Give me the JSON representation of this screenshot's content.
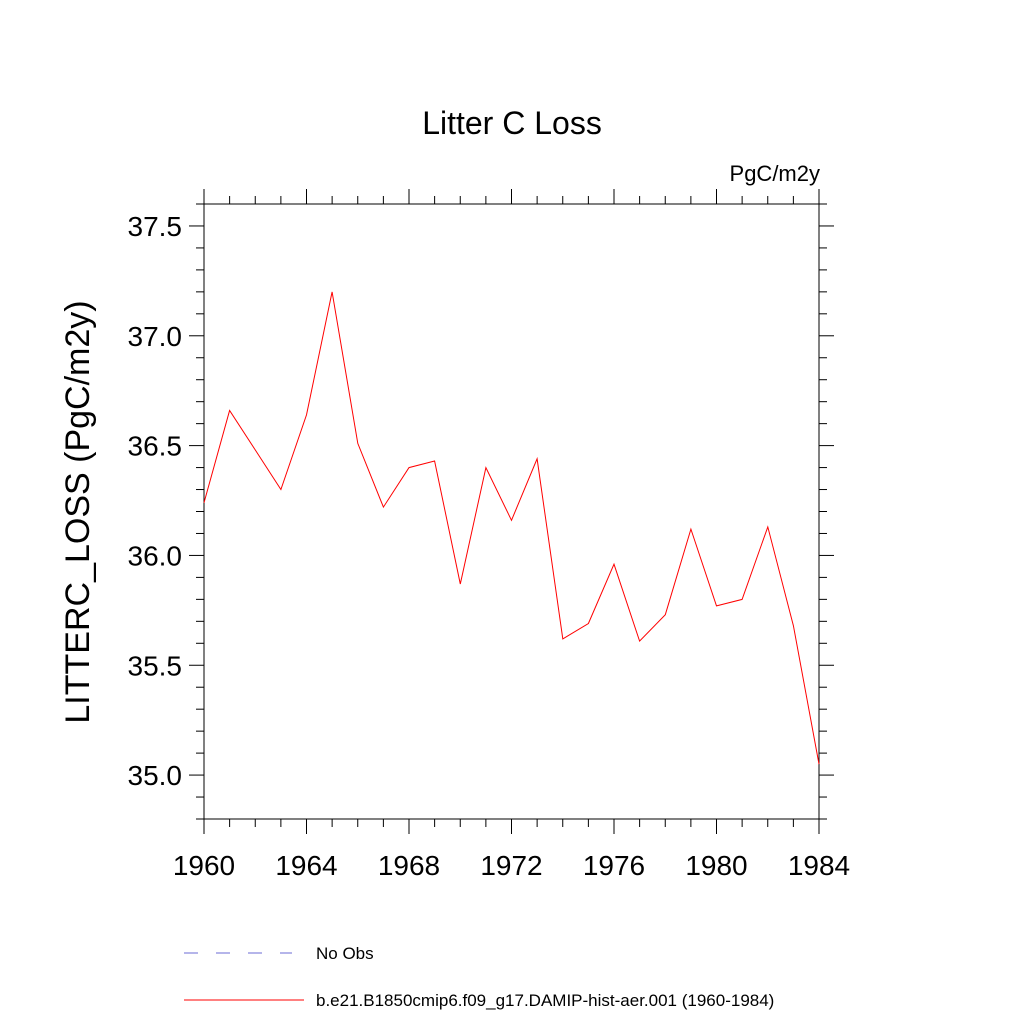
{
  "chart_data": {
    "type": "line",
    "title": "Litter C Loss",
    "units_label": "PgC/m2y",
    "ylabel": "LITTERC_LOSS  (PgC/m2y)",
    "xlabel": "",
    "xlim": [
      1960,
      1984
    ],
    "ylim": [
      34.8,
      37.6
    ],
    "x_ticks": [
      1960,
      1964,
      1968,
      1972,
      1976,
      1980,
      1984
    ],
    "y_ticks": [
      35.0,
      35.5,
      36.0,
      36.5,
      37.0,
      37.5
    ],
    "x_tick_labels": [
      "1960",
      "1964",
      "1968",
      "1972",
      "1976",
      "1980",
      "1984"
    ],
    "y_tick_labels": [
      "35.0",
      "35.5",
      "36.0",
      "36.5",
      "37.0",
      "37.5"
    ],
    "grid": false,
    "legend_position": "bottom",
    "series": [
      {
        "name": "b.e21.B1850cmip6.f09_g17.DAMIP-hist-aer.001 (1960-1984)",
        "color": "#ff0000",
        "style": "solid",
        "x": [
          1960,
          1961,
          1962,
          1963,
          1964,
          1965,
          1966,
          1967,
          1968,
          1969,
          1970,
          1971,
          1972,
          1973,
          1974,
          1975,
          1976,
          1977,
          1978,
          1979,
          1980,
          1981,
          1982,
          1983,
          1984
        ],
        "y": [
          36.24,
          36.66,
          36.48,
          36.3,
          36.64,
          37.2,
          36.51,
          36.22,
          36.4,
          36.43,
          35.87,
          36.4,
          36.16,
          36.44,
          35.62,
          35.69,
          35.96,
          35.61,
          35.73,
          36.12,
          35.77,
          35.8,
          36.13,
          35.68,
          35.05
        ]
      }
    ],
    "legend": [
      {
        "label": "No Obs",
        "color": "#6b6bd6",
        "style": "dashed"
      },
      {
        "label": "b.e21.B1850cmip6.f09_g17.DAMIP-hist-aer.001 (1960-1984)",
        "color": "#ff0000",
        "style": "solid"
      }
    ]
  }
}
